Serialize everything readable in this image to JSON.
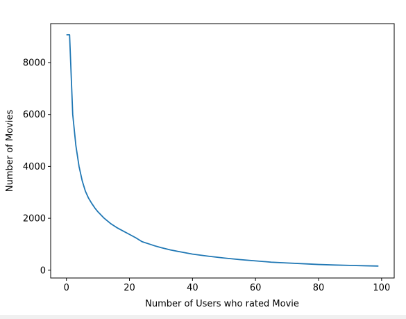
{
  "chart_data": {
    "type": "line",
    "title": "",
    "xlabel": "Number of Users who rated Movie",
    "ylabel": "Number of Movies",
    "xlim": [
      -5,
      104
    ],
    "ylim": [
      -300,
      9500
    ],
    "x_ticks": [
      0,
      20,
      40,
      60,
      80,
      100
    ],
    "y_ticks": [
      0,
      2000,
      4000,
      6000,
      8000
    ],
    "x_tick_labels": [
      "0",
      "20",
      "40",
      "60",
      "80",
      "100"
    ],
    "y_tick_labels": [
      "0",
      "2000",
      "4000",
      "6000",
      "8000"
    ],
    "grid": false,
    "legend": "none",
    "line_color": "#1f77b4",
    "series": [
      {
        "x": [
          0,
          1,
          2,
          3,
          4,
          5,
          6,
          7,
          8,
          9,
          10,
          12,
          14,
          16,
          18,
          20,
          22,
          24,
          26,
          28,
          30,
          33,
          36,
          40,
          45,
          50,
          55,
          60,
          65,
          70,
          75,
          80,
          85,
          90,
          95,
          99
        ],
        "values": [
          9070,
          9070,
          6000,
          4800,
          4000,
          3450,
          3050,
          2780,
          2580,
          2400,
          2250,
          2000,
          1800,
          1640,
          1510,
          1380,
          1250,
          1100,
          1020,
          940,
          870,
          780,
          710,
          620,
          540,
          470,
          410,
          360,
          310,
          280,
          250,
          220,
          200,
          185,
          170,
          160
        ]
      }
    ]
  }
}
